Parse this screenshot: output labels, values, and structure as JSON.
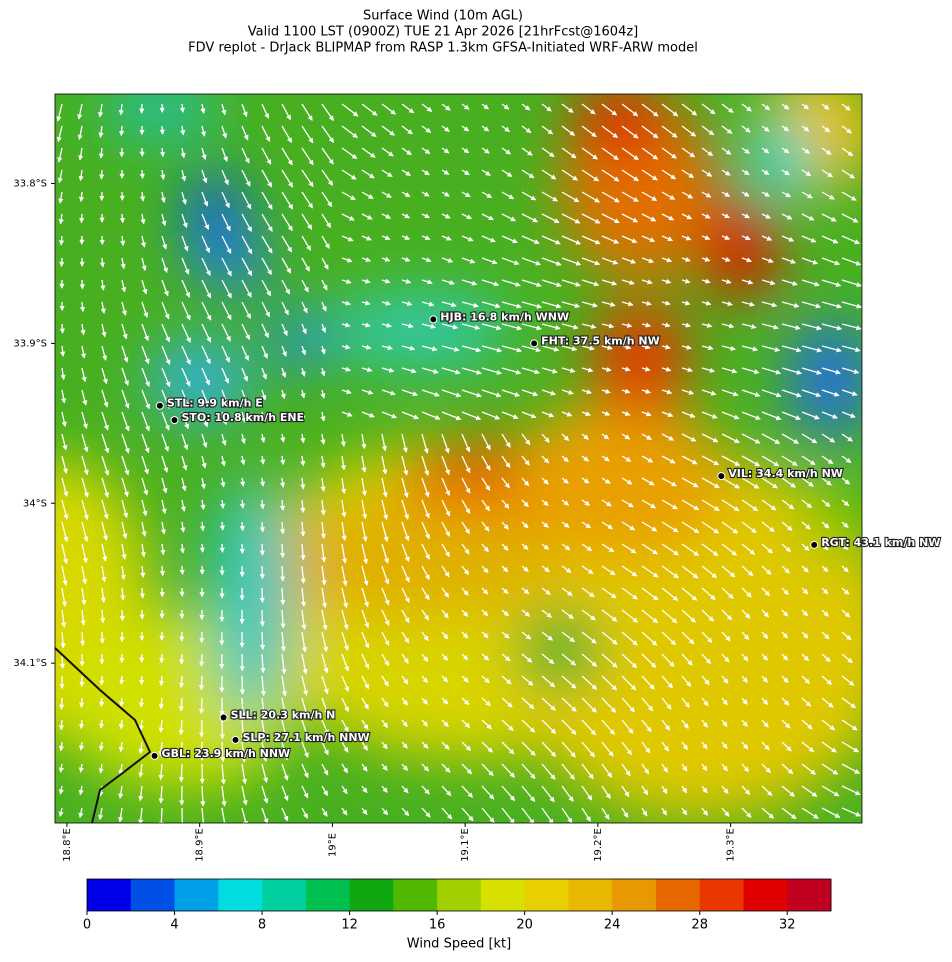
{
  "title": [
    "Surface Wind (10m AGL)",
    "Valid 1100 LST (0900Z) TUE 21 Apr 2026 [21hrFcst@1604z]",
    "FDV replot - DrJack BLIPMAP from RASP 1.3km GFSA-Initiated WRF-ARW model"
  ],
  "map": {
    "xlim": [
      18.791,
      19.399
    ],
    "ylim": [
      -34.2,
      -33.744
    ],
    "xticks": [
      {
        "value": 18.8,
        "label": "18.8°E"
      },
      {
        "value": 18.9,
        "label": "18.9°E"
      },
      {
        "value": 19.0,
        "label": "19°E"
      },
      {
        "value": 19.1,
        "label": "19.1°E"
      },
      {
        "value": 19.2,
        "label": "19.2°E"
      },
      {
        "value": 19.3,
        "label": "19.3°E"
      }
    ],
    "yticks": [
      {
        "value": -33.8,
        "label": "33.8°S"
      },
      {
        "value": -33.9,
        "label": "33.9°S"
      },
      {
        "value": -34.0,
        "label": "34°S"
      },
      {
        "value": -34.1,
        "label": "34.1°S"
      }
    ],
    "stations": [
      {
        "label": "HJB: 16.8 km/h WNW",
        "lon": 19.076,
        "lat": -33.885
      },
      {
        "label": "FHT: 37.5 km/h NW",
        "lon": 19.152,
        "lat": -33.9
      },
      {
        "label": "STL: 9.9 km/h E",
        "lon": 18.87,
        "lat": -33.939
      },
      {
        "label": "STO: 10.8 km/h ENE",
        "lon": 18.881,
        "lat": -33.948
      },
      {
        "label": "VIL: 34.4 km/h NW",
        "lon": 19.293,
        "lat": -33.983
      },
      {
        "label": "RGT: 43.1 km/h NW",
        "lon": 19.363,
        "lat": -34.026
      },
      {
        "label": "SLL: 20.3 km/h N",
        "lon": 18.918,
        "lat": -34.134
      },
      {
        "label": "SLP: 27.1 km/h NNW",
        "lon": 18.927,
        "lat": -34.148
      },
      {
        "label": "GBL: 23.9 km/h NNW",
        "lon": 18.866,
        "lat": -34.158
      }
    ]
  },
  "colorbar": {
    "label": "Wind Speed [kt]",
    "lim": [
      0,
      34
    ],
    "ticks": [
      0,
      4,
      8,
      12,
      16,
      20,
      24,
      28,
      32
    ],
    "colors": [
      "#0000e8",
      "#0050e8",
      "#00a0e8",
      "#00dce0",
      "#00d0a0",
      "#00c050",
      "#10a810",
      "#50b800",
      "#a0d000",
      "#d8e000",
      "#e8d000",
      "#e8b800",
      "#e89800",
      "#e86800",
      "#e83800",
      "#e00000",
      "#c00020"
    ]
  }
}
